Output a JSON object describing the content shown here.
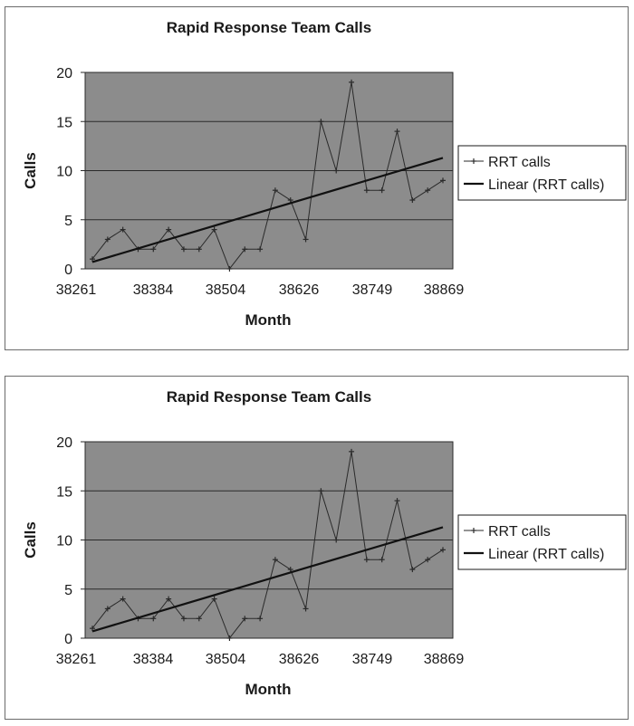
{
  "colors": {
    "plot_background": "#8c8c8c",
    "gridline": "#2a2a2a",
    "series_line": "#2a2a2a",
    "trendline": "#111111",
    "text": "#1a1a1a",
    "border": "#6b6b6b"
  },
  "chart_data": [
    {
      "type": "line",
      "title": "Rapid Response Team Calls",
      "xlabel": "Month",
      "ylabel": "Calls",
      "ylim": [
        0,
        20
      ],
      "yticks": [
        0,
        5,
        10,
        15,
        20
      ],
      "xtick_labels": [
        "38261",
        "38384",
        "38504",
        "38626",
        "38749",
        "38869"
      ],
      "grid": true,
      "legend_position": "right",
      "series": [
        {
          "name": "RRT calls",
          "marker": "plus",
          "values": [
            1,
            3,
            4,
            2,
            2,
            4,
            2,
            2,
            4,
            0,
            2,
            2,
            8,
            7,
            3,
            15,
            10,
            19,
            8,
            8,
            14,
            7,
            8,
            9
          ]
        },
        {
          "name": "Linear (RRT calls)",
          "kind": "trendline",
          "start": 0.7,
          "end": 11.3
        }
      ]
    },
    {
      "type": "line",
      "title": "Rapid Response Team Calls",
      "xlabel": "Month",
      "ylabel": "Calls",
      "ylim": [
        0,
        20
      ],
      "yticks": [
        0,
        5,
        10,
        15,
        20
      ],
      "xtick_labels": [
        "38261",
        "38384",
        "38504",
        "38626",
        "38749",
        "38869"
      ],
      "grid": true,
      "legend_position": "right",
      "series": [
        {
          "name": "RRT calls",
          "marker": "plus",
          "values": [
            1,
            3,
            4,
            2,
            2,
            4,
            2,
            2,
            4,
            0,
            2,
            2,
            8,
            7,
            3,
            15,
            10,
            19,
            8,
            8,
            14,
            7,
            8,
            9
          ]
        },
        {
          "name": "Linear (RRT calls)",
          "kind": "trendline",
          "start": 0.7,
          "end": 11.3
        }
      ]
    }
  ]
}
